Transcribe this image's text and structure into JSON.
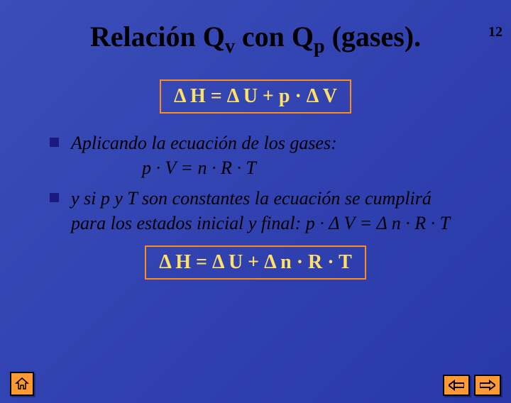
{
  "page_number": "12",
  "title_html": "Relación Q<sub>v</sub> con Q<sub>p</sub> (gases).",
  "formula1": "Δ H = Δ U + p · Δ V",
  "formula2": "Δ H = Δ U + Δ n · R · T",
  "bullets": [
    {
      "lines": [
        "Aplicando la ecuación de los gases:",
        "p · V = n · R · T"
      ],
      "indent_second": true
    },
    {
      "lines": [
        "y si p y T son constantes la ecuación se cumplirá para los estados inicial y final: p · Δ V = Δ n · R · T"
      ],
      "indent_second": false
    }
  ],
  "colors": {
    "border": "#ff8c1a",
    "formula_text": "#ffe066",
    "bullet_square": "#1a1a80",
    "nav_bg": "#ff9933"
  }
}
